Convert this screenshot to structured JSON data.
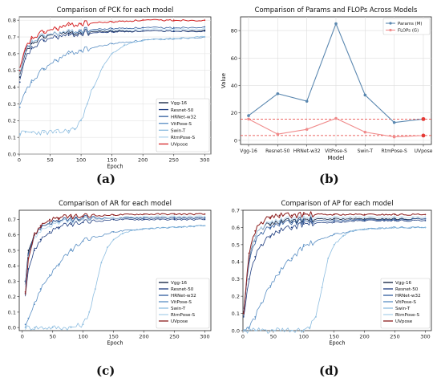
{
  "panel_labels": [
    "(a)",
    "(b)",
    "(c)",
    "(d)"
  ],
  "colors": {
    "Vgg-16": "#0b1b3a",
    "Resnet-50": "#1f3d80",
    "HRNet-w32": "#2f5c9e",
    "VitPose-S": "#5a8fc4",
    "Swin-T": "#8dbde0",
    "RtmPose-S": "#aed2ec",
    "UVpose": "#d62728",
    "UVpose_ac": "#8b1c1c",
    "params": "#5b88b0",
    "flops": "#f08b8b",
    "ref_line": "#e53935"
  },
  "chart_data": [
    {
      "type": "line",
      "title": "Comparison of PCK for each model",
      "xlabel": "Epoch",
      "ylabel": "",
      "xlim": [
        0,
        310
      ],
      "ylim": [
        0,
        0.82
      ],
      "xticks": [
        0,
        50,
        100,
        150,
        200,
        250,
        300
      ],
      "yticks": [
        0.0,
        0.1,
        0.2,
        0.3,
        0.4,
        0.5,
        0.6,
        0.7,
        0.8
      ],
      "ytick_labels": [
        "0.0",
        "0.1",
        "0.2",
        "0.3",
        "0.4",
        "0.5",
        "0.6",
        "0.7",
        "0.8"
      ],
      "legend_position": "lower-right",
      "grid": true,
      "legend_names": [
        "Vgg-16",
        "Resnet-50",
        "HRNet-w32",
        "VitPose-S",
        "Swin-T",
        "RtmPose-S",
        "UVpose"
      ],
      "series": [
        {
          "name": "Vgg-16",
          "x": [
            1,
            10,
            20,
            40,
            60,
            80,
            100,
            150,
            200,
            250,
            300
          ],
          "values": [
            0.46,
            0.6,
            0.66,
            0.7,
            0.72,
            0.72,
            0.73,
            0.735,
            0.735,
            0.735,
            0.74
          ]
        },
        {
          "name": "Resnet-50",
          "x": [
            1,
            10,
            20,
            40,
            60,
            80,
            100,
            150,
            200,
            250,
            300
          ],
          "values": [
            0.43,
            0.57,
            0.63,
            0.68,
            0.7,
            0.71,
            0.72,
            0.73,
            0.735,
            0.735,
            0.735
          ]
        },
        {
          "name": "HRNet-w32",
          "x": [
            1,
            10,
            20,
            40,
            60,
            80,
            100,
            150,
            200,
            250,
            300
          ],
          "values": [
            0.5,
            0.62,
            0.67,
            0.71,
            0.72,
            0.73,
            0.74,
            0.75,
            0.755,
            0.755,
            0.76
          ]
        },
        {
          "name": "VitPose-S",
          "x": [
            1,
            10,
            20,
            40,
            60,
            80,
            100,
            150,
            200,
            250,
            300
          ],
          "values": [
            0.28,
            0.37,
            0.43,
            0.51,
            0.56,
            0.6,
            0.62,
            0.66,
            0.68,
            0.69,
            0.7
          ]
        },
        {
          "name": "Swin-T",
          "x": [
            1,
            10,
            20,
            40,
            60,
            80,
            90,
            100,
            110,
            120,
            135,
            150,
            170,
            200,
            250,
            300
          ],
          "values": [
            0.12,
            0.13,
            0.13,
            0.13,
            0.13,
            0.14,
            0.15,
            0.2,
            0.3,
            0.4,
            0.52,
            0.6,
            0.65,
            0.68,
            0.69,
            0.7
          ]
        },
        {
          "name": "RtmPose-S",
          "x": [
            1,
            10,
            20,
            40,
            60,
            80,
            100,
            150,
            200,
            250,
            300
          ],
          "values": [
            0.47,
            0.61,
            0.67,
            0.71,
            0.72,
            0.73,
            0.735,
            0.74,
            0.745,
            0.745,
            0.75
          ]
        },
        {
          "name": "UVpose",
          "x": [
            1,
            10,
            20,
            40,
            60,
            80,
            100,
            150,
            200,
            250,
            300
          ],
          "values": [
            0.5,
            0.63,
            0.69,
            0.73,
            0.75,
            0.77,
            0.78,
            0.79,
            0.8,
            0.8,
            0.8
          ]
        }
      ]
    },
    {
      "type": "line",
      "title": "Comparison of Params and FLOPs Across Models",
      "xlabel": "Model",
      "ylabel": "Value",
      "ylim": [
        -3,
        90
      ],
      "yticks": [
        0,
        20,
        40,
        60,
        80
      ],
      "categories": [
        "Vgg-16",
        "Resnet-50",
        "HRNet-w32",
        "VitPose-S",
        "Swin-T",
        "RtmPose-S",
        "UVpose"
      ],
      "legend_position": "top-right",
      "grid": true,
      "reference_lines": [
        15.5,
        3.5
      ],
      "series": [
        {
          "name": "Params (M)",
          "values": [
            18,
            34,
            28.5,
            85,
            33,
            13,
            15.5
          ]
        },
        {
          "name": "FLOPs (G)",
          "values": [
            15.5,
            4.5,
            8,
            16,
            6,
            2.5,
            3.5
          ]
        }
      ]
    },
    {
      "type": "line",
      "title": "Comparison of AR for each model",
      "xlabel": "Epoch",
      "ylabel": "",
      "xlim": [
        -5,
        310
      ],
      "ylim": [
        -0.02,
        0.76
      ],
      "xticks": [
        0,
        50,
        100,
        150,
        200,
        250,
        300
      ],
      "yticks": [
        0.0,
        0.1,
        0.2,
        0.3,
        0.4,
        0.5,
        0.6,
        0.7
      ],
      "ytick_labels": [
        "0.0",
        "0.1",
        "0.2",
        "0.3",
        "0.4",
        "0.5",
        "0.6",
        "0.7"
      ],
      "legend_position": "lower-right",
      "grid": false,
      "legend_names": [
        "Vgg-16",
        "Resnet-50",
        "HRNet-w32",
        "VitPose-S",
        "Swin-T",
        "RtmPose-S",
        "UVpose"
      ],
      "series": [
        {
          "name": "Vgg-16",
          "x": [
            5,
            10,
            20,
            30,
            45,
            60,
            80,
            100,
            150,
            200,
            250,
            300
          ],
          "values": [
            0.3,
            0.5,
            0.6,
            0.65,
            0.68,
            0.69,
            0.7,
            0.7,
            0.71,
            0.71,
            0.71,
            0.71
          ]
        },
        {
          "name": "Resnet-50",
          "x": [
            5,
            10,
            20,
            30,
            45,
            60,
            80,
            100,
            150,
            200,
            250,
            300
          ],
          "values": [
            0.22,
            0.38,
            0.5,
            0.57,
            0.62,
            0.65,
            0.67,
            0.68,
            0.7,
            0.7,
            0.7,
            0.7
          ]
        },
        {
          "name": "HRNet-w32",
          "x": [
            5,
            10,
            20,
            30,
            45,
            60,
            80,
            100,
            150,
            200,
            250,
            300
          ],
          "values": [
            0.3,
            0.48,
            0.6,
            0.65,
            0.68,
            0.69,
            0.7,
            0.71,
            0.71,
            0.71,
            0.71,
            0.71
          ]
        },
        {
          "name": "VitPose-S",
          "x": [
            5,
            10,
            20,
            30,
            45,
            60,
            80,
            100,
            150,
            200,
            250,
            300
          ],
          "values": [
            0.02,
            0.06,
            0.15,
            0.25,
            0.34,
            0.41,
            0.5,
            0.56,
            0.62,
            0.64,
            0.65,
            0.66
          ]
        },
        {
          "name": "Swin-T",
          "x": [
            5,
            20,
            50,
            80,
            100,
            110,
            120,
            130,
            140,
            150,
            165,
            180,
            200,
            250,
            300
          ],
          "values": [
            0.0,
            0.0,
            0.0,
            0.0,
            0.02,
            0.1,
            0.25,
            0.42,
            0.52,
            0.57,
            0.61,
            0.63,
            0.64,
            0.65,
            0.66
          ]
        },
        {
          "name": "RtmPose-S",
          "x": [
            5,
            10,
            20,
            30,
            45,
            60,
            80,
            100,
            150,
            200,
            250,
            300
          ],
          "values": [
            0.28,
            0.46,
            0.58,
            0.63,
            0.66,
            0.68,
            0.69,
            0.7,
            0.71,
            0.72,
            0.72,
            0.72
          ]
        },
        {
          "name": "UVpose",
          "x": [
            5,
            10,
            20,
            30,
            45,
            60,
            80,
            100,
            150,
            200,
            250,
            300
          ],
          "values": [
            0.23,
            0.45,
            0.6,
            0.66,
            0.7,
            0.71,
            0.72,
            0.72,
            0.73,
            0.735,
            0.735,
            0.735
          ]
        }
      ]
    },
    {
      "type": "line",
      "title": "Comparison of AP for each model",
      "xlabel": "Epoch",
      "ylabel": "",
      "xlim": [
        0,
        310
      ],
      "ylim": [
        0,
        0.7
      ],
      "xticks": [
        0,
        50,
        100,
        150,
        200,
        250,
        300
      ],
      "yticks": [
        0.0,
        0.1,
        0.2,
        0.3,
        0.4,
        0.5,
        0.6,
        0.7
      ],
      "ytick_labels": [
        "0.0",
        "0.1",
        "0.2",
        "0.3",
        "0.4",
        "0.5",
        "0.6",
        "0.7"
      ],
      "legend_position": "lower-right",
      "grid": false,
      "legend_names": [
        "Vgg-16",
        "Resnet-50",
        "HRNet-w32",
        "VitPose-S",
        "Swin-T",
        "RtmPose-S",
        "UVpose"
      ],
      "series": [
        {
          "name": "Vgg-16",
          "x": [
            1,
            10,
            20,
            30,
            45,
            60,
            80,
            100,
            150,
            200,
            250,
            300
          ],
          "values": [
            0.1,
            0.42,
            0.55,
            0.6,
            0.62,
            0.63,
            0.64,
            0.645,
            0.65,
            0.65,
            0.65,
            0.65
          ]
        },
        {
          "name": "Resnet-50",
          "x": [
            1,
            10,
            20,
            30,
            45,
            60,
            80,
            100,
            150,
            200,
            250,
            300
          ],
          "values": [
            0.08,
            0.3,
            0.43,
            0.5,
            0.55,
            0.58,
            0.6,
            0.62,
            0.63,
            0.64,
            0.64,
            0.64
          ]
        },
        {
          "name": "HRNet-w32",
          "x": [
            1,
            10,
            20,
            30,
            45,
            60,
            80,
            100,
            150,
            200,
            250,
            300
          ],
          "values": [
            0.12,
            0.4,
            0.52,
            0.57,
            0.6,
            0.62,
            0.63,
            0.635,
            0.64,
            0.645,
            0.645,
            0.65
          ]
        },
        {
          "name": "VitPose-S",
          "x": [
            1,
            10,
            20,
            30,
            45,
            60,
            80,
            100,
            150,
            200,
            250,
            300
          ],
          "values": [
            0.0,
            0.02,
            0.08,
            0.16,
            0.26,
            0.34,
            0.42,
            0.49,
            0.56,
            0.59,
            0.6,
            0.6
          ]
        },
        {
          "name": "Swin-T",
          "x": [
            1,
            20,
            50,
            80,
            100,
            110,
            120,
            130,
            140,
            150,
            165,
            180,
            200,
            250,
            300
          ],
          "values": [
            0.0,
            0.0,
            0.0,
            0.0,
            0.0,
            0.02,
            0.08,
            0.25,
            0.42,
            0.5,
            0.55,
            0.58,
            0.59,
            0.6,
            0.6
          ]
        },
        {
          "name": "RtmPose-S",
          "x": [
            1,
            10,
            20,
            30,
            45,
            60,
            80,
            100,
            150,
            200,
            250,
            300
          ],
          "values": [
            0.12,
            0.43,
            0.55,
            0.6,
            0.63,
            0.64,
            0.65,
            0.655,
            0.66,
            0.66,
            0.66,
            0.66
          ]
        },
        {
          "name": "UVpose",
          "x": [
            1,
            10,
            20,
            30,
            45,
            60,
            80,
            100,
            150,
            200,
            250,
            300
          ],
          "values": [
            0.1,
            0.45,
            0.58,
            0.63,
            0.66,
            0.67,
            0.67,
            0.675,
            0.675,
            0.675,
            0.675,
            0.675
          ]
        }
      ]
    }
  ]
}
